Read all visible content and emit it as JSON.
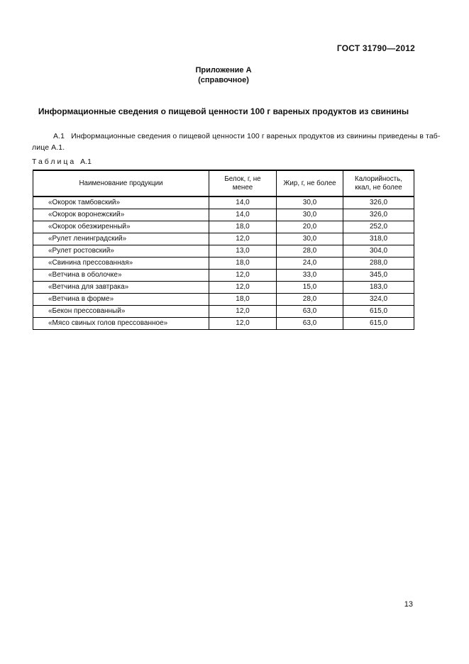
{
  "header": {
    "doc_number": "ГОСТ 31790—2012"
  },
  "annex": {
    "title": "Приложение А",
    "subtitle": "(справочное)"
  },
  "section": {
    "title": "Информационные сведения о пищевой ценности 100 г вареных продуктов из свинины",
    "paragraph": {
      "label": "А.1",
      "line1": "Информационные сведения о пищевой ценности 100 г вареных продуктов из свинины приведены в таб-",
      "line2": "лице А.1."
    }
  },
  "table": {
    "label_word": "Таблица",
    "label_number": "А.1",
    "columns": [
      "Наименование продукции",
      "Белок, г, не менее",
      "Жир, г, не более",
      "Калорийность, ккал, не более"
    ],
    "rows": [
      {
        "name": "«Окорок тамбовский»",
        "protein": "14,0",
        "fat": "30,0",
        "kcal": "326,0"
      },
      {
        "name": "«Окорок воронежский»",
        "protein": "14,0",
        "fat": "30,0",
        "kcal": "326,0"
      },
      {
        "name": "«Окорок обезжиренный»",
        "protein": "18,0",
        "fat": "20,0",
        "kcal": "252,0"
      },
      {
        "name": "«Рулет ленинградский»",
        "protein": "12,0",
        "fat": "30,0",
        "kcal": "318,0"
      },
      {
        "name": "«Рулет ростовский»",
        "protein": "13,0",
        "fat": "28,0",
        "kcal": "304,0"
      },
      {
        "name": "«Свинина прессованная»",
        "protein": "18,0",
        "fat": "24,0",
        "kcal": "288,0"
      },
      {
        "name": "«Ветчина в оболочке»",
        "protein": "12,0",
        "fat": "33,0",
        "kcal": "345,0"
      },
      {
        "name": "«Ветчина для завтрака»",
        "protein": "12,0",
        "fat": "15,0",
        "kcal": "183,0"
      },
      {
        "name": "«Ветчина в форме»",
        "protein": "18,0",
        "fat": "28,0",
        "kcal": "324,0"
      },
      {
        "name": "«Бекон прессованный»",
        "protein": "12,0",
        "fat": "63,0",
        "kcal": "615,0"
      },
      {
        "name": "«Мясо свиных голов прессованное»",
        "protein": "12,0",
        "fat": "63,0",
        "kcal": "615,0"
      }
    ]
  },
  "footer": {
    "page_number": "13"
  }
}
